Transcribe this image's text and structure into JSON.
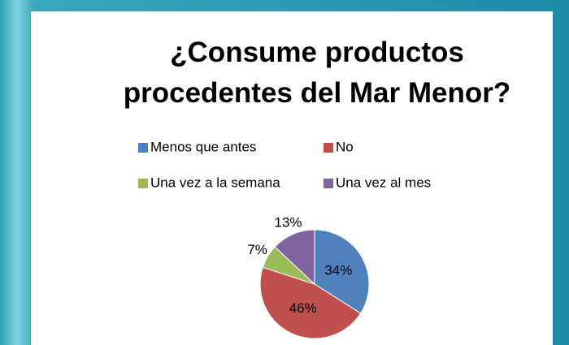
{
  "chart_data": {
    "type": "pie",
    "title": "¿Consume productos procedentes del Mar Menor?",
    "categories": [
      "Menos que antes",
      "No",
      "Una vez a la semana",
      "Una vez al mes"
    ],
    "values": [
      34,
      46,
      7,
      13
    ],
    "value_labels": [
      "34%",
      "46%",
      "7%",
      "13%"
    ],
    "colors": [
      "#4f81bd",
      "#c0504d",
      "#9bbb59",
      "#8064a2"
    ],
    "legend": "top"
  }
}
